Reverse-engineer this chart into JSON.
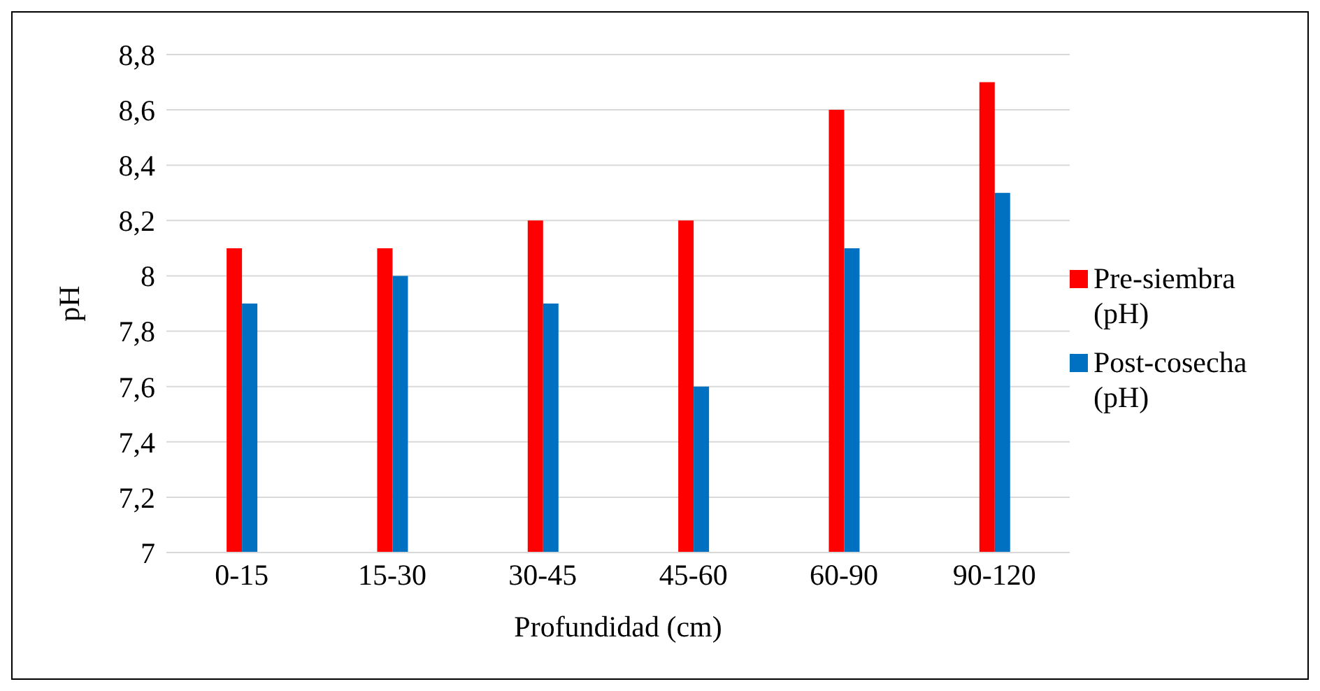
{
  "chart_data": {
    "type": "bar",
    "xlabel": "Profundidad (cm)",
    "ylabel": "pH",
    "categories": [
      "0-15",
      "15-30",
      "30-45",
      "45-60",
      "60-90",
      "90-120"
    ],
    "series": [
      {
        "name": "Pre-siembra (pH)",
        "color": "#ff0000",
        "values": [
          8.1,
          8.1,
          8.2,
          8.2,
          8.6,
          8.7
        ]
      },
      {
        "name": "Post-cosecha (pH)",
        "color": "#0070c0",
        "values": [
          7.9,
          8.0,
          7.9,
          7.6,
          8.1,
          8.3
        ]
      }
    ],
    "ylim": [
      7,
      8.8
    ],
    "yticks": [
      {
        "value": 7,
        "label": "7"
      },
      {
        "value": 7.2,
        "label": "7,2"
      },
      {
        "value": 7.4,
        "label": "7,4"
      },
      {
        "value": 7.6,
        "label": "7,6"
      },
      {
        "value": 7.8,
        "label": "7,8"
      },
      {
        "value": 8,
        "label": "8"
      },
      {
        "value": 8.2,
        "label": "8,2"
      },
      {
        "value": 8.4,
        "label": "8,4"
      },
      {
        "value": 8.6,
        "label": "8,6"
      },
      {
        "value": 8.8,
        "label": "8,8"
      }
    ],
    "grid": "y",
    "legend": "right"
  }
}
